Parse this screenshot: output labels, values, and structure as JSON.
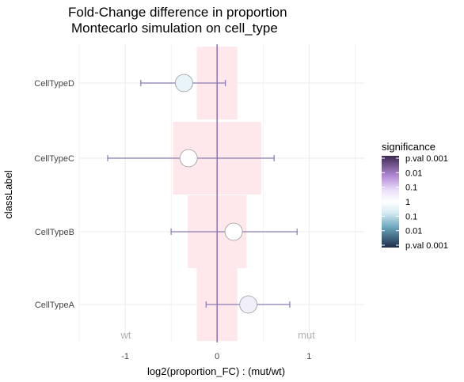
{
  "chart_data": {
    "type": "forest",
    "title_line1": "Fold-Change difference in proportion",
    "title_line2": "Montecarlo simulation on cell_type",
    "xlabel": "log2(proportion_FC) : (mut/wt)",
    "ylabel": "classLabel",
    "xlim": [
      -1.5,
      1.6
    ],
    "x_ticks": [
      -1,
      0,
      1
    ],
    "x_tick_labels": [
      "-1",
      "0",
      "1"
    ],
    "categories": [
      "CellTypeA",
      "CellTypeB",
      "CellTypeC",
      "CellTypeD"
    ],
    "estimates": [
      0.34,
      0.18,
      -0.31,
      -0.36
    ],
    "ci_low": [
      -0.12,
      -0.5,
      -1.19,
      -0.83
    ],
    "ci_high": [
      0.79,
      0.87,
      0.62,
      0.09
    ],
    "significance_band_low": [
      -0.22,
      -0.32,
      -0.48,
      -0.22
    ],
    "significance_band_high": [
      0.22,
      0.32,
      0.48,
      0.22
    ],
    "point_colors": [
      "#f1effa",
      "#ffffff",
      "#ffffff",
      "#e8f3fa"
    ],
    "band_color": "#ffe8ec",
    "errorbar_color": "#8a7ab0",
    "zero_line_color": "#8a70b0",
    "grid": true,
    "left_annotation": "wt",
    "right_annotation": "mut",
    "legend": {
      "title": "significance",
      "placement": "right",
      "labels": [
        "p.val 0.001",
        "0.01",
        "0.1",
        "1",
        "0.1",
        "0.01",
        "p.val 0.001"
      ]
    }
  }
}
